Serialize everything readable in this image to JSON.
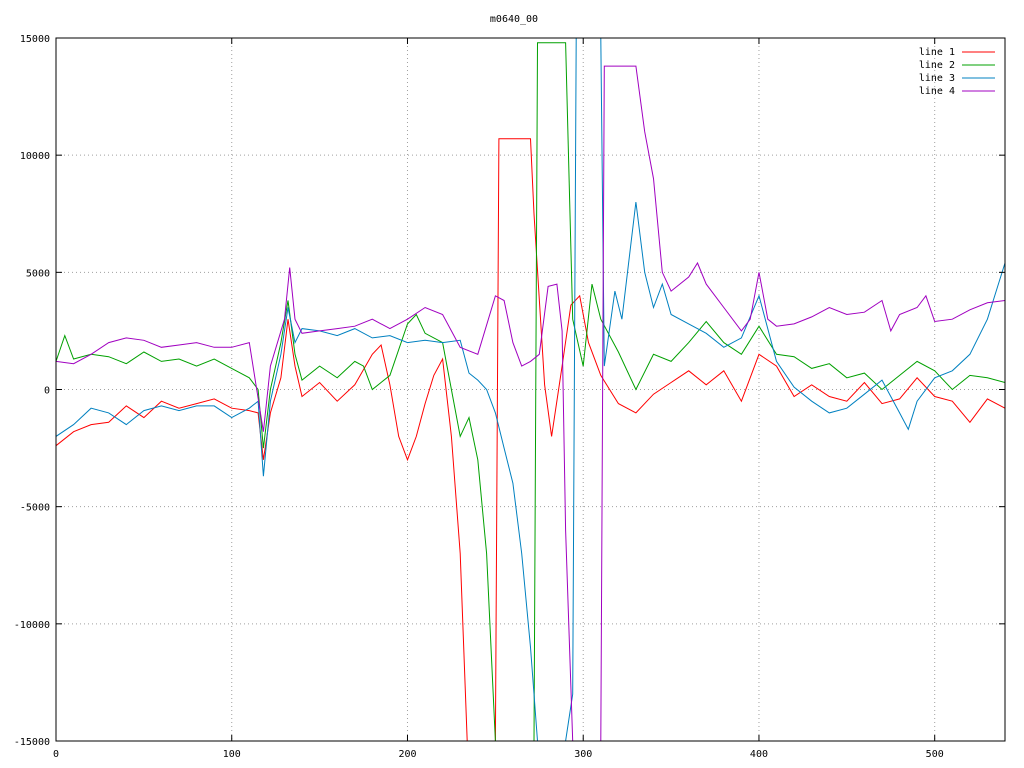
{
  "chart_data": {
    "type": "line",
    "title": "m0640_00",
    "xlabel": "",
    "ylabel": "",
    "xlim": [
      0,
      540
    ],
    "ylim": [
      -15000,
      15000
    ],
    "xticks": [
      0,
      100,
      200,
      300,
      400,
      500
    ],
    "yticks": [
      -15000,
      -10000,
      -5000,
      0,
      5000,
      10000,
      15000
    ],
    "grid": true,
    "legend_position": "top-right",
    "series": [
      {
        "name": "line 1",
        "color": "#ff0000",
        "points": [
          [
            0,
            -2400
          ],
          [
            10,
            -1800
          ],
          [
            20,
            -1500
          ],
          [
            30,
            -1400
          ],
          [
            40,
            -700
          ],
          [
            50,
            -1200
          ],
          [
            60,
            -500
          ],
          [
            70,
            -800
          ],
          [
            80,
            -600
          ],
          [
            90,
            -400
          ],
          [
            100,
            -800
          ],
          [
            110,
            -900
          ],
          [
            115,
            -1000
          ],
          [
            118,
            -3000
          ],
          [
            122,
            -1000
          ],
          [
            128,
            500
          ],
          [
            132,
            3000
          ],
          [
            136,
            1000
          ],
          [
            140,
            -300
          ],
          [
            150,
            300
          ],
          [
            160,
            -500
          ],
          [
            170,
            200
          ],
          [
            180,
            1500
          ],
          [
            185,
            1900
          ],
          [
            190,
            200
          ],
          [
            195,
            -2000
          ],
          [
            200,
            -3000
          ],
          [
            205,
            -2000
          ],
          [
            210,
            -600
          ],
          [
            215,
            600
          ],
          [
            220,
            1300
          ],
          [
            225,
            -2000
          ],
          [
            230,
            -7000
          ],
          [
            234,
            -15000
          ],
          [
            250,
            -15000
          ],
          [
            252,
            10700
          ],
          [
            270,
            10700
          ],
          [
            272,
            7500
          ],
          [
            278,
            200
          ],
          [
            282,
            -2000
          ],
          [
            288,
            1000
          ],
          [
            293,
            3600
          ],
          [
            298,
            4000
          ],
          [
            303,
            2000
          ],
          [
            310,
            600
          ],
          [
            320,
            -600
          ],
          [
            330,
            -1000
          ],
          [
            340,
            -200
          ],
          [
            350,
            300
          ],
          [
            360,
            800
          ],
          [
            370,
            200
          ],
          [
            380,
            800
          ],
          [
            390,
            -500
          ],
          [
            400,
            1500
          ],
          [
            410,
            1000
          ],
          [
            420,
            -300
          ],
          [
            430,
            200
          ],
          [
            440,
            -300
          ],
          [
            450,
            -500
          ],
          [
            460,
            300
          ],
          [
            470,
            -600
          ],
          [
            480,
            -400
          ],
          [
            490,
            500
          ],
          [
            500,
            -300
          ],
          [
            510,
            -500
          ],
          [
            520,
            -1400
          ],
          [
            530,
            -400
          ],
          [
            540,
            -800
          ]
        ]
      },
      {
        "name": "line 2",
        "color": "#00a000",
        "points": [
          [
            0,
            1200
          ],
          [
            5,
            2300
          ],
          [
            10,
            1300
          ],
          [
            20,
            1500
          ],
          [
            30,
            1400
          ],
          [
            40,
            1100
          ],
          [
            50,
            1600
          ],
          [
            60,
            1200
          ],
          [
            70,
            1300
          ],
          [
            80,
            1000
          ],
          [
            90,
            1300
          ],
          [
            100,
            900
          ],
          [
            110,
            500
          ],
          [
            115,
            0
          ],
          [
            118,
            -2500
          ],
          [
            122,
            0
          ],
          [
            128,
            2000
          ],
          [
            132,
            3800
          ],
          [
            136,
            1500
          ],
          [
            140,
            400
          ],
          [
            150,
            1000
          ],
          [
            160,
            500
          ],
          [
            170,
            1200
          ],
          [
            175,
            1000
          ],
          [
            180,
            0
          ],
          [
            190,
            600
          ],
          [
            200,
            2800
          ],
          [
            205,
            3200
          ],
          [
            210,
            2400
          ],
          [
            220,
            2000
          ],
          [
            225,
            0
          ],
          [
            230,
            -2000
          ],
          [
            235,
            -1200
          ],
          [
            240,
            -3000
          ],
          [
            245,
            -7000
          ],
          [
            250,
            -15000
          ],
          [
            272,
            -15000
          ],
          [
            274,
            14800
          ],
          [
            290,
            14800
          ],
          [
            294,
            3000
          ],
          [
            300,
            1000
          ],
          [
            305,
            4500
          ],
          [
            310,
            3000
          ],
          [
            320,
            1600
          ],
          [
            330,
            0
          ],
          [
            340,
            1500
          ],
          [
            350,
            1200
          ],
          [
            360,
            2000
          ],
          [
            370,
            2900
          ],
          [
            380,
            2000
          ],
          [
            390,
            1500
          ],
          [
            400,
            2700
          ],
          [
            410,
            1500
          ],
          [
            420,
            1400
          ],
          [
            430,
            900
          ],
          [
            440,
            1100
          ],
          [
            450,
            500
          ],
          [
            460,
            700
          ],
          [
            470,
            0
          ],
          [
            480,
            600
          ],
          [
            490,
            1200
          ],
          [
            500,
            800
          ],
          [
            510,
            0
          ],
          [
            520,
            600
          ],
          [
            530,
            500
          ],
          [
            540,
            300
          ]
        ]
      },
      {
        "name": "line 3",
        "color": "#0080c0",
        "points": [
          [
            0,
            -2000
          ],
          [
            10,
            -1500
          ],
          [
            20,
            -800
          ],
          [
            30,
            -1000
          ],
          [
            40,
            -1500
          ],
          [
            50,
            -900
          ],
          [
            60,
            -700
          ],
          [
            70,
            -900
          ],
          [
            80,
            -700
          ],
          [
            90,
            -700
          ],
          [
            100,
            -1200
          ],
          [
            110,
            -800
          ],
          [
            115,
            -500
          ],
          [
            118,
            -3700
          ],
          [
            122,
            -500
          ],
          [
            128,
            1500
          ],
          [
            132,
            3500
          ],
          [
            136,
            2000
          ],
          [
            140,
            2600
          ],
          [
            150,
            2500
          ],
          [
            160,
            2300
          ],
          [
            170,
            2600
          ],
          [
            180,
            2200
          ],
          [
            190,
            2300
          ],
          [
            200,
            2000
          ],
          [
            210,
            2100
          ],
          [
            220,
            2000
          ],
          [
            230,
            2100
          ],
          [
            235,
            700
          ],
          [
            240,
            400
          ],
          [
            245,
            0
          ],
          [
            250,
            -1000
          ],
          [
            255,
            -2500
          ],
          [
            260,
            -4000
          ],
          [
            265,
            -7000
          ],
          [
            270,
            -11000
          ],
          [
            274,
            -15000
          ],
          [
            290,
            -15000
          ],
          [
            294,
            -13000
          ],
          [
            296,
            15000
          ],
          [
            310,
            15000
          ],
          [
            312,
            1000
          ],
          [
            318,
            4200
          ],
          [
            322,
            3000
          ],
          [
            326,
            5500
          ],
          [
            330,
            8000
          ],
          [
            335,
            5000
          ],
          [
            340,
            3500
          ],
          [
            345,
            4500
          ],
          [
            350,
            3200
          ],
          [
            360,
            2800
          ],
          [
            370,
            2400
          ],
          [
            380,
            1800
          ],
          [
            390,
            2200
          ],
          [
            400,
            4000
          ],
          [
            410,
            1200
          ],
          [
            420,
            100
          ],
          [
            430,
            -500
          ],
          [
            440,
            -1000
          ],
          [
            450,
            -800
          ],
          [
            460,
            -200
          ],
          [
            470,
            400
          ],
          [
            480,
            -1000
          ],
          [
            485,
            -1700
          ],
          [
            490,
            -500
          ],
          [
            500,
            500
          ],
          [
            510,
            800
          ],
          [
            520,
            1500
          ],
          [
            530,
            3000
          ],
          [
            540,
            5400
          ]
        ]
      },
      {
        "name": "line 4",
        "color": "#a000c0",
        "points": [
          [
            0,
            1200
          ],
          [
            10,
            1100
          ],
          [
            20,
            1500
          ],
          [
            30,
            2000
          ],
          [
            40,
            2200
          ],
          [
            50,
            2100
          ],
          [
            60,
            1800
          ],
          [
            70,
            1900
          ],
          [
            80,
            2000
          ],
          [
            90,
            1800
          ],
          [
            100,
            1800
          ],
          [
            110,
            2000
          ],
          [
            118,
            -1800
          ],
          [
            122,
            1000
          ],
          [
            130,
            3000
          ],
          [
            133,
            5200
          ],
          [
            136,
            3000
          ],
          [
            140,
            2400
          ],
          [
            150,
            2500
          ],
          [
            160,
            2600
          ],
          [
            170,
            2700
          ],
          [
            180,
            3000
          ],
          [
            190,
            2600
          ],
          [
            200,
            3000
          ],
          [
            210,
            3500
          ],
          [
            220,
            3200
          ],
          [
            225,
            2500
          ],
          [
            230,
            1800
          ],
          [
            240,
            1500
          ],
          [
            250,
            4000
          ],
          [
            255,
            3800
          ],
          [
            260,
            2000
          ],
          [
            265,
            1000
          ],
          [
            270,
            1200
          ],
          [
            275,
            1500
          ],
          [
            280,
            4400
          ],
          [
            285,
            4500
          ],
          [
            288,
            2500
          ],
          [
            290,
            -6000
          ],
          [
            294,
            -15000
          ],
          [
            310,
            -15000
          ],
          [
            312,
            13800
          ],
          [
            330,
            13800
          ],
          [
            335,
            11000
          ],
          [
            340,
            9000
          ],
          [
            345,
            5000
          ],
          [
            350,
            4200
          ],
          [
            360,
            4800
          ],
          [
            365,
            5400
          ],
          [
            370,
            4500
          ],
          [
            380,
            3500
          ],
          [
            390,
            2500
          ],
          [
            395,
            3000
          ],
          [
            400,
            5000
          ],
          [
            405,
            3000
          ],
          [
            410,
            2700
          ],
          [
            420,
            2800
          ],
          [
            430,
            3100
          ],
          [
            440,
            3500
          ],
          [
            450,
            3200
          ],
          [
            460,
            3300
          ],
          [
            470,
            3800
          ],
          [
            475,
            2500
          ],
          [
            480,
            3200
          ],
          [
            490,
            3500
          ],
          [
            495,
            4000
          ],
          [
            500,
            2900
          ],
          [
            510,
            3000
          ],
          [
            520,
            3400
          ],
          [
            530,
            3700
          ],
          [
            540,
            3800
          ]
        ]
      }
    ]
  }
}
